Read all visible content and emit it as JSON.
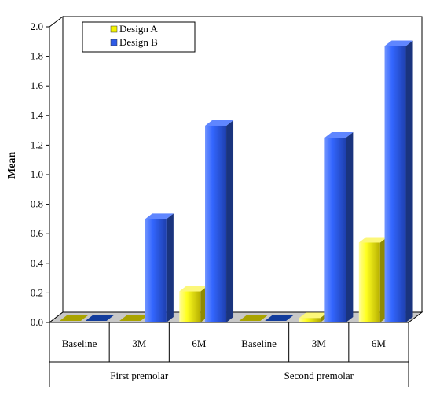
{
  "chart_data": {
    "type": "bar",
    "ylabel": "Mean",
    "ylim": [
      0,
      2.0
    ],
    "yticks": [
      "0.0",
      "0.2",
      "0.4",
      "0.6",
      "0.8",
      "1.0",
      "1.2",
      "1.4",
      "1.6",
      "1.8",
      "2.0"
    ],
    "groups": [
      {
        "label": "First premolar",
        "categories": [
          "Baseline",
          "3M",
          "6M"
        ]
      },
      {
        "label": "Second premolar",
        "categories": [
          "Baseline",
          "3M",
          "6M"
        ]
      }
    ],
    "categories": [
      "Baseline",
      "3M",
      "6M",
      "Baseline",
      "3M",
      "6M"
    ],
    "series": [
      {
        "name": "Design A",
        "color": "#f2f200",
        "values": [
          0.0,
          0.0,
          0.21,
          0.0,
          0.03,
          0.54
        ]
      },
      {
        "name": "Design B",
        "color": "#2e5be6",
        "values": [
          0.0,
          0.7,
          1.33,
          0.0,
          1.25,
          1.87
        ]
      }
    ],
    "legend_position": "top-left",
    "grid": false,
    "style": "3d"
  }
}
